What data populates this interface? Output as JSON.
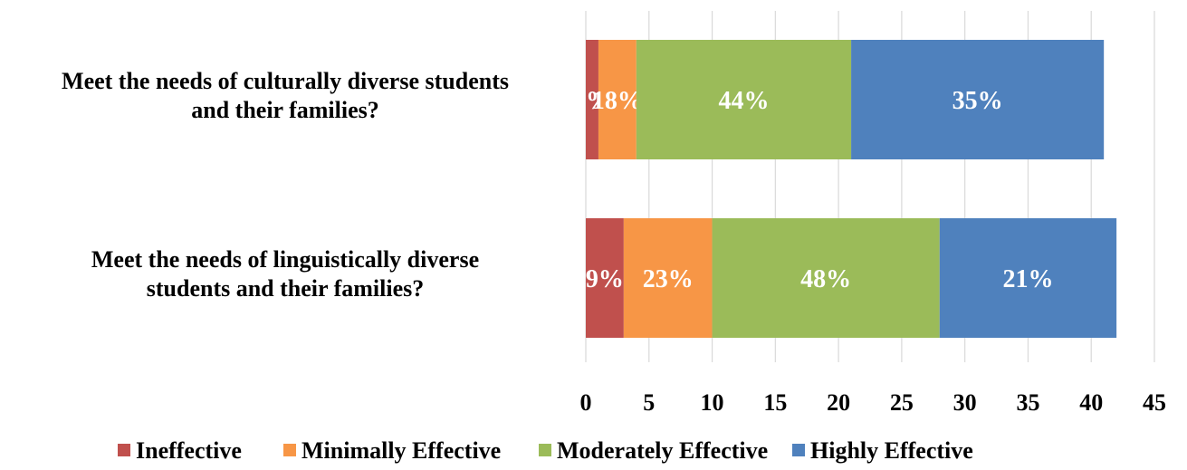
{
  "chart_data": {
    "type": "bar",
    "orientation": "horizontal",
    "stacked": true,
    "categories": [
      [
        "Meet the needs of culturally diverse students",
        "and their families?"
      ],
      [
        "Meet the needs of linguistically diverse",
        "students and their families?"
      ]
    ],
    "series": [
      {
        "name": "Ineffective",
        "color": "#c0504d",
        "values": [
          1,
          3
        ],
        "labels": [
          "1%",
          "9%"
        ]
      },
      {
        "name": "Minimally Effective",
        "color": "#f79646",
        "values": [
          3,
          7
        ],
        "labels": [
          "18%",
          "23%"
        ]
      },
      {
        "name": "Moderately Effective",
        "color": "#9bbb59",
        "values": [
          17,
          18
        ],
        "labels": [
          "44%",
          "48%"
        ]
      },
      {
        "name": "Highly Effective",
        "color": "#4f81bd",
        "values": [
          20,
          14
        ],
        "labels": [
          "35%",
          "21%"
        ]
      }
    ],
    "xlim": [
      0,
      45
    ],
    "xticks": [
      0,
      5,
      10,
      15,
      20,
      25,
      30,
      35,
      40,
      45
    ],
    "grid": true,
    "legend": "bottom"
  }
}
